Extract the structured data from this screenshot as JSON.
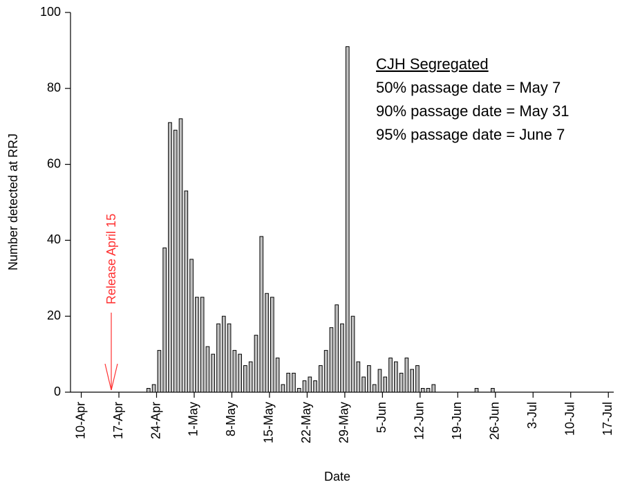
{
  "chart_data": {
    "type": "bar",
    "xlabel": "Date",
    "ylabel": "Number detected at RRJ",
    "categories": [
      null,
      null,
      "10-Apr",
      null,
      null,
      null,
      null,
      null,
      null,
      "17-Apr",
      null,
      null,
      null,
      null,
      null,
      null,
      "24-Apr",
      null,
      null,
      null,
      null,
      null,
      null,
      "1-May",
      null,
      null,
      null,
      null,
      null,
      null,
      "8-May",
      null,
      null,
      null,
      null,
      null,
      null,
      "15-May",
      null,
      null,
      null,
      null,
      null,
      null,
      "22-May",
      null,
      null,
      null,
      null,
      null,
      null,
      "29-May",
      null,
      null,
      null,
      null,
      null,
      null,
      "5-Jun",
      null,
      null,
      null,
      null,
      null,
      null,
      "12-Jun",
      null,
      null,
      null,
      null,
      null,
      null,
      "19-Jun",
      null,
      null,
      null,
      null,
      null,
      null,
      "26-Jun",
      null,
      null,
      null,
      null,
      null,
      null,
      "3-Jul",
      null,
      null,
      null,
      null,
      null,
      null,
      "10-Jul",
      null,
      null,
      null,
      null,
      null,
      null,
      "17-Jul"
    ],
    "values": [
      0,
      0,
      0,
      0,
      0,
      0,
      0,
      0,
      0,
      0,
      0,
      0,
      0,
      0,
      1,
      2,
      11,
      38,
      71,
      69,
      72,
      53,
      35,
      25,
      25,
      12,
      10,
      18,
      20,
      18,
      11,
      10,
      7,
      8,
      15,
      41,
      26,
      25,
      9,
      2,
      5,
      5,
      1,
      3,
      4,
      3,
      7,
      11,
      17,
      23,
      18,
      91,
      20,
      8,
      4,
      7,
      2,
      6,
      4,
      9,
      8,
      5,
      9,
      6,
      7,
      1,
      1,
      2,
      0,
      0,
      0,
      0,
      0,
      0,
      0,
      1,
      0,
      0,
      1,
      0,
      0,
      0,
      0,
      0,
      0,
      0,
      0,
      0,
      0,
      0,
      0,
      0,
      0,
      0,
      0,
      0,
      0,
      0,
      0,
      0,
      0
    ],
    "color": "#c0c0c0",
    "ylim": [
      0,
      100
    ],
    "yticks": [
      0,
      20,
      40,
      60,
      80,
      100
    ],
    "grid": false,
    "annotations": [
      "CJH Segregated",
      "50% passage date = May 7",
      "90% passage date = May 31",
      "95% passage date = June 7"
    ],
    "release_label": "Release April 15"
  }
}
